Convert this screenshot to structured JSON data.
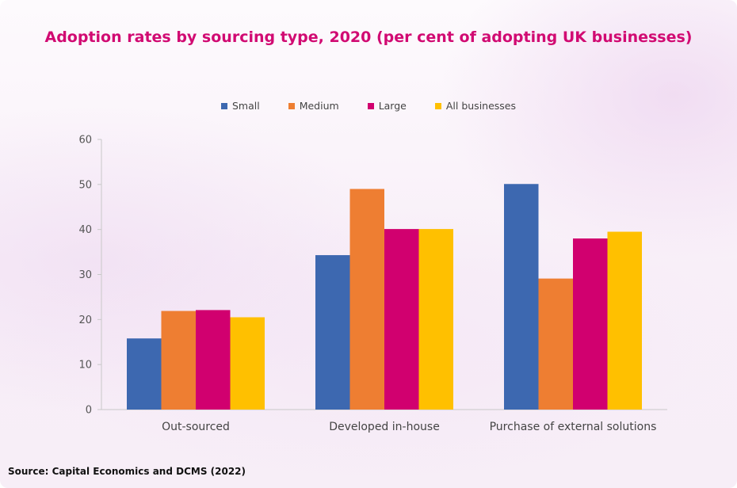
{
  "colors": {
    "title": "#d10a72",
    "axis": "#c8c8c8",
    "tick_text": "#555555"
  },
  "source": "Source: Capital Economics and DCMS (2022)",
  "chart_data": {
    "type": "bar",
    "title": "Adoption rates by sourcing type, 2020 (per cent of adopting UK businesses)",
    "xlabel": "",
    "ylabel": "",
    "ylim": [
      0,
      60
    ],
    "yticks": [
      "0",
      "10",
      "20",
      "30",
      "40",
      "50",
      "60"
    ],
    "grid": false,
    "legend_position": "top",
    "categories": [
      "Out-sourced",
      "Developed in-house",
      "Purchase of external solutions"
    ],
    "series": [
      {
        "name": "Small",
        "color": "#3d68b0",
        "values": [
          15.8,
          34.3,
          50.1
        ]
      },
      {
        "name": "Medium",
        "color": "#ee7e32",
        "values": [
          21.9,
          49.0,
          29.1
        ]
      },
      {
        "name": "Large",
        "color": "#d1006f",
        "values": [
          22.1,
          40.1,
          38.0
        ]
      },
      {
        "name": "All businesses",
        "color": "#ffc000",
        "values": [
          20.5,
          40.1,
          39.5
        ]
      }
    ]
  }
}
